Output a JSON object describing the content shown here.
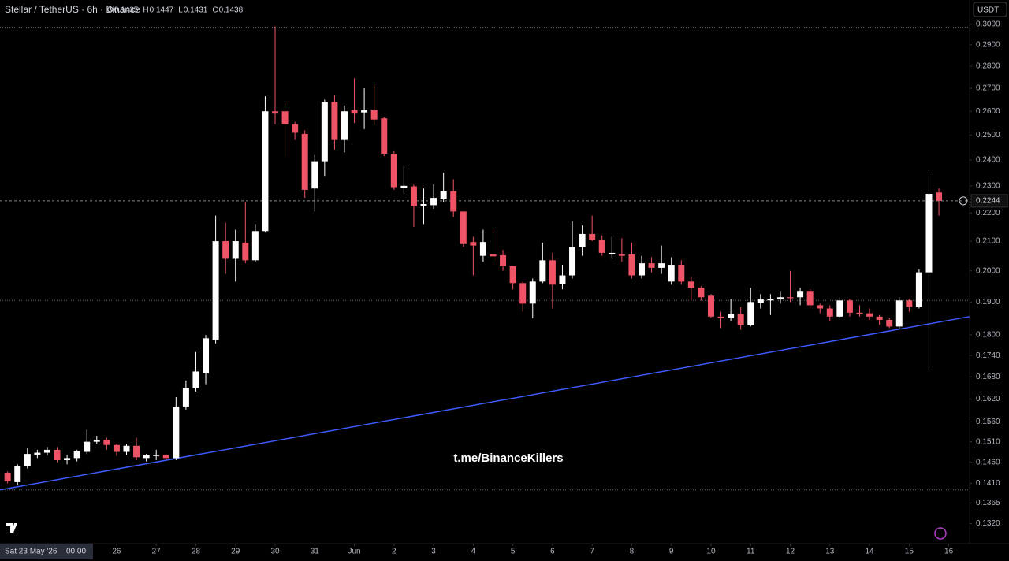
{
  "chart_data": {
    "type": "candlestick",
    "title": "Stellar / TetherUS · 6h · Binance",
    "ohlc_legend": {
      "labels": [
        "O",
        "H",
        "L",
        "C"
      ],
      "values": [
        0.1435,
        0.1447,
        0.1431,
        0.1438
      ]
    },
    "currency_button": "USDT",
    "watermark": "t.me/BinanceKillers",
    "crosshair_date": "Sat 23 May '26",
    "crosshair_time": "00:00",
    "current_price": 0.2244,
    "log_scale": true,
    "up_color": "#ffffff",
    "down_color": "#ef5466",
    "ylim": [
      0.1277,
      0.3122
    ],
    "yticks": [
      {
        "value": 0.3,
        "label": "0.3000"
      },
      {
        "value": 0.29,
        "label": "0.2900"
      },
      {
        "value": 0.28,
        "label": "0.2800"
      },
      {
        "value": 0.27,
        "label": "0.2700"
      },
      {
        "value": 0.26,
        "label": "0.2600"
      },
      {
        "value": 0.25,
        "label": "0.2500"
      },
      {
        "value": 0.24,
        "label": "0.2400"
      },
      {
        "value": 0.23,
        "label": "0.2300"
      },
      {
        "value": 0.22,
        "label": "0.2200"
      },
      {
        "value": 0.21,
        "label": "0.2100"
      },
      {
        "value": 0.2,
        "label": "0.2000"
      },
      {
        "value": 0.19,
        "label": "0.1900"
      },
      {
        "value": 0.18,
        "label": "0.1800"
      },
      {
        "value": 0.174,
        "label": "0.1740"
      },
      {
        "value": 0.168,
        "label": "0.1680"
      },
      {
        "value": 0.162,
        "label": "0.1620"
      },
      {
        "value": 0.156,
        "label": "0.1560"
      },
      {
        "value": 0.151,
        "label": "0.1510"
      },
      {
        "value": 0.146,
        "label": "0.1460"
      },
      {
        "value": 0.141,
        "label": "0.1410"
      },
      {
        "value": 0.1365,
        "label": "0.1365"
      },
      {
        "value": 0.132,
        "label": "0.1320"
      }
    ],
    "xlim": [
      -0.77,
      97.1
    ],
    "xticks": [
      {
        "value": 11,
        "label": "26"
      },
      {
        "value": 15,
        "label": "27"
      },
      {
        "value": 19,
        "label": "28"
      },
      {
        "value": 23,
        "label": "29"
      },
      {
        "value": 27,
        "label": "30"
      },
      {
        "value": 31,
        "label": "31"
      },
      {
        "value": 35,
        "label": "Jun"
      },
      {
        "value": 39,
        "label": "2"
      },
      {
        "value": 43,
        "label": "3"
      },
      {
        "value": 47,
        "label": "4"
      },
      {
        "value": 51,
        "label": "5"
      },
      {
        "value": 55,
        "label": "6"
      },
      {
        "value": 59,
        "label": "7"
      },
      {
        "value": 63,
        "label": "8"
      },
      {
        "value": 67,
        "label": "9"
      },
      {
        "value": 71,
        "label": "10"
      },
      {
        "value": 75,
        "label": "11"
      },
      {
        "value": 79,
        "label": "12"
      },
      {
        "value": 83,
        "label": "13"
      },
      {
        "value": 87,
        "label": "14"
      },
      {
        "value": 91,
        "label": "15"
      },
      {
        "value": 95,
        "label": "16"
      }
    ],
    "levels": [
      0.2985,
      0.1905,
      0.1395
    ],
    "trendline": {
      "x": [
        -0.77,
        97.1
      ],
      "values": [
        0.1395,
        0.1855
      ],
      "color": "#3d5afe"
    },
    "open": [
      0.1435,
      0.1413,
      0.145,
      0.1478,
      0.1483,
      0.149,
      0.1465,
      0.147,
      0.1485,
      0.151,
      0.1515,
      0.1502,
      0.1485,
      0.15,
      0.147,
      0.1475,
      0.1478,
      0.147,
      0.16,
      0.165,
      0.169,
      0.1785,
      0.21,
      0.204,
      0.2095,
      0.2035,
      0.2135,
      0.26,
      0.26,
      0.2545,
      0.2505,
      0.229,
      0.2395,
      0.264,
      0.248,
      0.2605,
      0.2595,
      0.2605,
      0.257,
      0.2425,
      0.2293,
      0.2298,
      0.2225,
      0.2228,
      0.225,
      0.228,
      0.2205,
      0.2097,
      0.205,
      0.2055,
      0.2052,
      0.2015,
      0.196,
      0.1895,
      0.1965,
      0.2035,
      0.1958,
      0.1985,
      0.208,
      0.2125,
      0.2105,
      0.2055,
      0.2055,
      0.2055,
      0.1985,
      0.2025,
      0.201,
      0.1965,
      0.202,
      0.1965,
      0.1945,
      0.192,
      0.1855,
      0.185,
      0.1863,
      0.183,
      0.1898,
      0.1905,
      0.1908,
      0.1915,
      0.1915,
      0.1935,
      0.189,
      0.188,
      0.1855,
      0.1905,
      0.1867,
      0.1865,
      0.1855,
      0.1845,
      0.1825,
      0.1905,
      0.1885,
      0.1995,
      0.2275
    ],
    "high": [
      0.1438,
      0.1455,
      0.1495,
      0.149,
      0.1497,
      0.1497,
      0.1478,
      0.149,
      0.154,
      0.1525,
      0.152,
      0.1505,
      0.1505,
      0.152,
      0.148,
      0.149,
      0.148,
      0.1625,
      0.167,
      0.175,
      0.18,
      0.219,
      0.2165,
      0.214,
      0.224,
      0.216,
      0.2665,
      0.299,
      0.2635,
      0.2555,
      0.252,
      0.242,
      0.265,
      0.267,
      0.2625,
      0.2745,
      0.27,
      0.272,
      0.2575,
      0.2435,
      0.2375,
      0.2305,
      0.229,
      0.2305,
      0.235,
      0.2325,
      0.2205,
      0.2115,
      0.214,
      0.2145,
      0.207,
      0.2015,
      0.1965,
      0.1975,
      0.2095,
      0.206,
      0.202,
      0.217,
      0.2155,
      0.219,
      0.212,
      0.2115,
      0.211,
      0.2095,
      0.205,
      0.2045,
      0.2085,
      0.2045,
      0.2035,
      0.198,
      0.195,
      0.1925,
      0.187,
      0.191,
      0.1885,
      0.1945,
      0.1925,
      0.1925,
      0.1935,
      0.2,
      0.1945,
      0.194,
      0.1895,
      0.189,
      0.1915,
      0.191,
      0.189,
      0.188,
      0.186,
      0.185,
      0.1915,
      0.191,
      0.2005,
      0.2345,
      0.229
    ],
    "low": [
      0.141,
      0.1405,
      0.1445,
      0.147,
      0.1476,
      0.146,
      0.1455,
      0.1462,
      0.148,
      0.1505,
      0.149,
      0.1475,
      0.1478,
      0.1465,
      0.1462,
      0.1465,
      0.1465,
      0.1465,
      0.1592,
      0.164,
      0.166,
      0.1775,
      0.199,
      0.1965,
      0.2025,
      0.203,
      0.213,
      0.2545,
      0.241,
      0.248,
      0.2255,
      0.2205,
      0.2335,
      0.244,
      0.243,
      0.255,
      0.2525,
      0.254,
      0.2415,
      0.2285,
      0.227,
      0.215,
      0.216,
      0.2215,
      0.224,
      0.2185,
      0.208,
      0.1985,
      0.203,
      0.2035,
      0.2,
      0.194,
      0.187,
      0.185,
      0.196,
      0.188,
      0.194,
      0.1975,
      0.205,
      0.21,
      0.205,
      0.204,
      0.203,
      0.1975,
      0.1975,
      0.1995,
      0.199,
      0.1955,
      0.1955,
      0.1905,
      0.1905,
      0.185,
      0.182,
      0.184,
      0.1815,
      0.1825,
      0.188,
      0.186,
      0.1895,
      0.19,
      0.189,
      0.188,
      0.1865,
      0.184,
      0.185,
      0.1855,
      0.1855,
      0.1845,
      0.183,
      0.182,
      0.182,
      0.187,
      0.188,
      0.17,
      0.219
    ],
    "close": [
      0.1415,
      0.145,
      0.148,
      0.1483,
      0.149,
      0.1465,
      0.147,
      0.1487,
      0.151,
      0.1515,
      0.1502,
      0.1485,
      0.15,
      0.1472,
      0.1477,
      0.1478,
      0.147,
      0.16,
      0.165,
      0.1695,
      0.179,
      0.21,
      0.204,
      0.21,
      0.2035,
      0.2135,
      0.26,
      0.259,
      0.2545,
      0.251,
      0.2285,
      0.2395,
      0.264,
      0.248,
      0.26,
      0.259,
      0.2605,
      0.2565,
      0.2425,
      0.2295,
      0.23,
      0.2225,
      0.2232,
      0.2255,
      0.228,
      0.2205,
      0.209,
      0.2085,
      0.2097,
      0.2048,
      0.2015,
      0.196,
      0.1895,
      0.1965,
      0.2035,
      0.1955,
      0.1985,
      0.208,
      0.2125,
      0.2105,
      0.206,
      0.206,
      0.205,
      0.1985,
      0.2025,
      0.201,
      0.2025,
      0.202,
      0.1965,
      0.1945,
      0.1915,
      0.1855,
      0.185,
      0.1863,
      0.183,
      0.19,
      0.1908,
      0.191,
      0.1915,
      0.1912,
      0.1935,
      0.189,
      0.188,
      0.1855,
      0.1905,
      0.1867,
      0.1862,
      0.1855,
      0.1845,
      0.1825,
      0.1905,
      0.1885,
      0.1995,
      0.227,
      0.2244
    ]
  }
}
